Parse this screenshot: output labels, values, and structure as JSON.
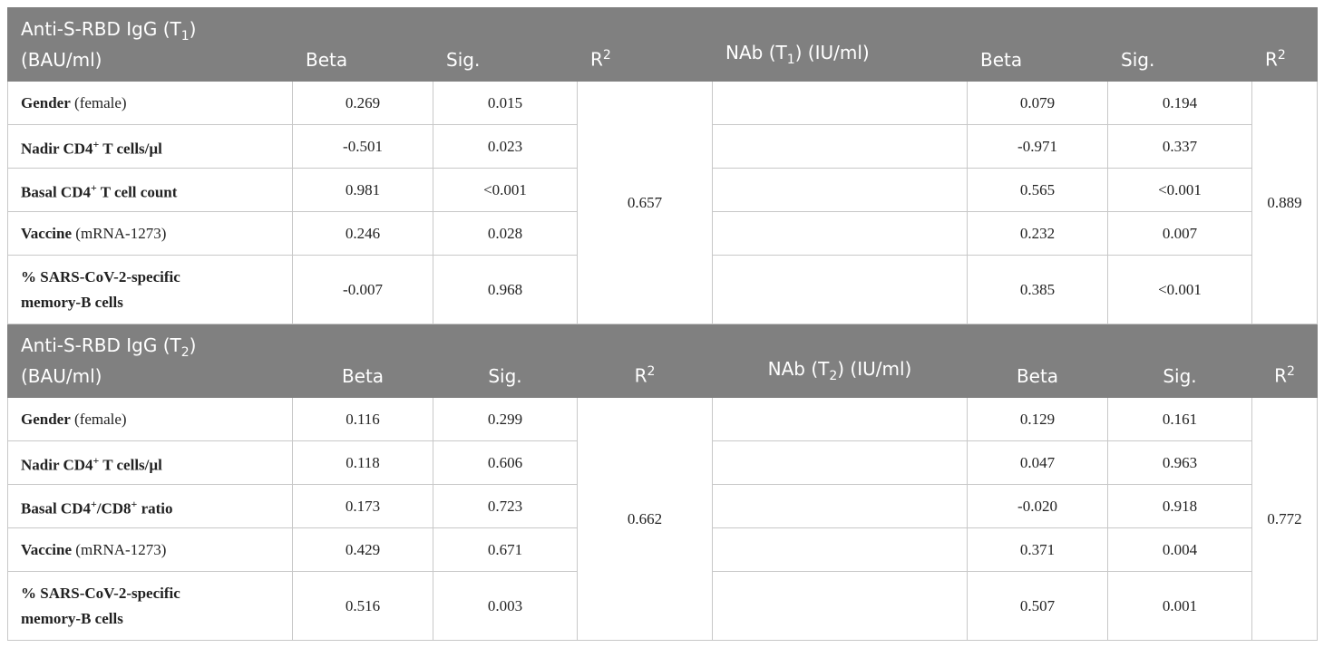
{
  "sections": [
    {
      "header": [
        [
          [
            {
              "t": "Anti-S-RBD IgG (T"
            },
            {
              "sub": "1"
            },
            {
              "t": ")"
            }
          ],
          [
            {
              "t": "(BAU/ml)"
            }
          ]
        ],
        [
          [
            {
              "t": "Beta"
            }
          ]
        ],
        [
          [
            {
              "t": "Sig."
            }
          ]
        ],
        [
          [
            {
              "t": "R"
            },
            {
              "sup": "2"
            }
          ]
        ],
        [
          [
            {
              "t": "NAb (T"
            },
            {
              "sub": "1"
            },
            {
              "t": ") (IU/ml)"
            }
          ]
        ],
        [
          [
            {
              "t": "Beta"
            }
          ]
        ],
        [
          [
            {
              "t": "Sig."
            }
          ]
        ],
        [
          [
            {
              "t": "R"
            },
            {
              "sup": "2"
            }
          ]
        ]
      ],
      "rows": [
        {
          "label": [
            [
              {
                "t": "Gender"
              },
              {
                "n": " (female)"
              }
            ]
          ],
          "beta": "0.269",
          "sig": "0.015",
          "nab_beta": "0.079",
          "nab_sig": "0.194"
        },
        {
          "label": [
            [
              {
                "t": "Nadir CD4"
              },
              {
                "sup": "+"
              },
              {
                "t": " T cells/µl"
              }
            ]
          ],
          "beta": "-0.501",
          "sig": "0.023",
          "nab_beta": "-0.971",
          "nab_sig": "0.337"
        },
        {
          "label": [
            [
              {
                "t": "Basal CD4"
              },
              {
                "sup": "+"
              },
              {
                "t": " T cell count"
              }
            ]
          ],
          "beta": "0.981",
          "sig": "<0.001",
          "nab_beta": "0.565",
          "nab_sig": "<0.001"
        },
        {
          "label": [
            [
              {
                "t": "Vaccine"
              },
              {
                "n": " (mRNA-1273)"
              }
            ]
          ],
          "beta": "0.246",
          "sig": "0.028",
          "nab_beta": "0.232",
          "nab_sig": "0.007"
        },
        {
          "label": [
            [
              {
                "t": "% SARS-CoV-2-specific"
              }
            ],
            [
              {
                "t": "memory-B cells"
              }
            ]
          ],
          "beta": "-0.007",
          "sig": "0.968",
          "nab_beta": "0.385",
          "nab_sig": "<0.001"
        }
      ],
      "r2": "0.657",
      "nab_r2": "0.889"
    },
    {
      "header": [
        [
          [
            {
              "t": "Anti-S-RBD IgG (T"
            },
            {
              "sub": "2"
            },
            {
              "t": ")"
            }
          ],
          [
            {
              "t": "(BAU/ml)"
            }
          ]
        ],
        [
          [
            {
              "t": "Beta"
            }
          ]
        ],
        [
          [
            {
              "t": "Sig."
            }
          ]
        ],
        [
          [
            {
              "t": "R"
            },
            {
              "sup": "2"
            }
          ]
        ],
        [
          [
            {
              "t": "NAb (T"
            },
            {
              "sub": "2"
            },
            {
              "t": ") (IU/ml)"
            }
          ]
        ],
        [
          [
            {
              "t": "Beta"
            }
          ]
        ],
        [
          [
            {
              "t": "Sig."
            }
          ]
        ],
        [
          [
            {
              "t": "R"
            },
            {
              "sup": "2"
            }
          ]
        ]
      ],
      "rows": [
        {
          "label": [
            [
              {
                "t": "Gender"
              },
              {
                "n": " (female)"
              }
            ]
          ],
          "beta": "0.116",
          "sig": "0.299",
          "nab_beta": "0.129",
          "nab_sig": "0.161"
        },
        {
          "label": [
            [
              {
                "t": "Nadir CD4"
              },
              {
                "sup": "+"
              },
              {
                "t": " T cells/µl"
              }
            ]
          ],
          "beta": "0.118",
          "sig": "0.606",
          "nab_beta": "0.047",
          "nab_sig": "0.963"
        },
        {
          "label": [
            [
              {
                "t": "Basal CD4"
              },
              {
                "sup": "+"
              },
              {
                "t": "/CD8"
              },
              {
                "sup": "+"
              },
              {
                "t": " ratio"
              }
            ]
          ],
          "beta": "0.173",
          "sig": "0.723",
          "nab_beta": "-0.020",
          "nab_sig": "0.918"
        },
        {
          "label": [
            [
              {
                "t": "Vaccine"
              },
              {
                "n": " (mRNA-1273)"
              }
            ]
          ],
          "beta": "0.429",
          "sig": "0.671",
          "nab_beta": "0.371",
          "nab_sig": "0.004"
        },
        {
          "label": [
            [
              {
                "t": "% SARS-CoV-2-specific"
              }
            ],
            [
              {
                "t": "memory-B cells"
              }
            ]
          ],
          "beta": "0.516",
          "sig": "0.003",
          "nab_beta": "0.507",
          "nab_sig": "0.001"
        }
      ],
      "r2": "0.662",
      "nab_r2": "0.772"
    }
  ]
}
